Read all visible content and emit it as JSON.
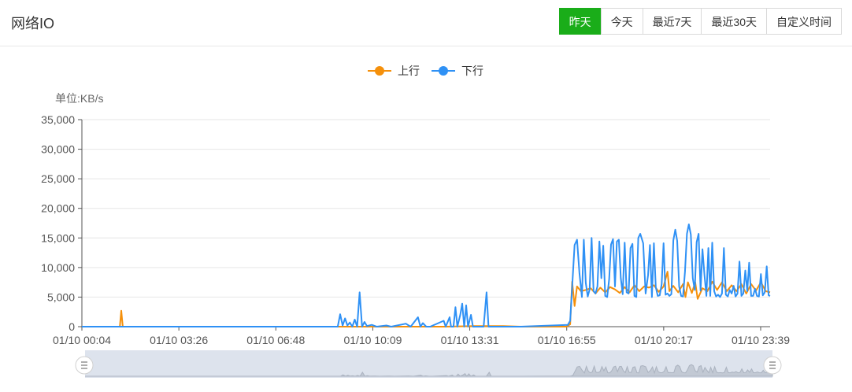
{
  "header": {
    "title": "网络IO",
    "buttons": [
      {
        "label": "昨天",
        "active": true
      },
      {
        "label": "今天",
        "active": false
      },
      {
        "label": "最近7天",
        "active": false
      },
      {
        "label": "最近30天",
        "active": false
      },
      {
        "label": "自定义时间",
        "active": false
      }
    ]
  },
  "colors": {
    "upload": "#f5900b",
    "download": "#2f91f5",
    "active_button": "#1aad19"
  },
  "chart_data": {
    "type": "line",
    "unit_label": "单位:KB/s",
    "legend": [
      "上行",
      "下行"
    ],
    "legend_position": "top-center",
    "grid": true,
    "ylim": [
      0,
      35000
    ],
    "y_ticks": [
      "35,000",
      "30,000",
      "25,000",
      "20,000",
      "15,000",
      "10,000",
      "5,000",
      "0"
    ],
    "x_ticks": [
      "01/10 00:04",
      "01/10 03:26",
      "01/10 06:48",
      "01/10 10:09",
      "01/10 13:31",
      "01/10 16:55",
      "01/10 20:17",
      "01/10 23:39"
    ],
    "x_range_minutes": [
      4,
      1419
    ],
    "series": [
      {
        "name": "上行",
        "points": [
          [
            4,
            0
          ],
          [
            70,
            0
          ],
          [
            82,
            0
          ],
          [
            85,
            2700
          ],
          [
            88,
            0
          ],
          [
            100,
            0
          ],
          [
            300,
            0
          ],
          [
            640,
            0
          ],
          [
            750,
            0
          ],
          [
            810,
            100
          ],
          [
            870,
            100
          ],
          [
            908,
            0
          ],
          [
            1000,
            0
          ],
          [
            1008,
            400
          ],
          [
            1012,
            7600
          ],
          [
            1017,
            3500
          ],
          [
            1022,
            6800
          ],
          [
            1030,
            6000
          ],
          [
            1040,
            6200
          ],
          [
            1050,
            6500
          ],
          [
            1060,
            5600
          ],
          [
            1070,
            6600
          ],
          [
            1080,
            5800
          ],
          [
            1090,
            6700
          ],
          [
            1100,
            6300
          ],
          [
            1110,
            5700
          ],
          [
            1120,
            6700
          ],
          [
            1130,
            5800
          ],
          [
            1140,
            7000
          ],
          [
            1150,
            6000
          ],
          [
            1160,
            6800
          ],
          [
            1170,
            6600
          ],
          [
            1180,
            7000
          ],
          [
            1190,
            5900
          ],
          [
            1200,
            6800
          ],
          [
            1208,
            9300
          ],
          [
            1212,
            6000
          ],
          [
            1220,
            6900
          ],
          [
            1230,
            5800
          ],
          [
            1240,
            7200
          ],
          [
            1245,
            5000
          ],
          [
            1250,
            7500
          ],
          [
            1258,
            5700
          ],
          [
            1265,
            7500
          ],
          [
            1270,
            4700
          ],
          [
            1280,
            6500
          ],
          [
            1290,
            6000
          ],
          [
            1300,
            7600
          ],
          [
            1310,
            6200
          ],
          [
            1320,
            7500
          ],
          [
            1330,
            6000
          ],
          [
            1340,
            7000
          ],
          [
            1350,
            6000
          ],
          [
            1360,
            7200
          ],
          [
            1370,
            5600
          ],
          [
            1380,
            7200
          ],
          [
            1390,
            6100
          ],
          [
            1400,
            7500
          ],
          [
            1410,
            6000
          ],
          [
            1419,
            5800
          ]
        ]
      },
      {
        "name": "下行",
        "points": [
          [
            4,
            0
          ],
          [
            100,
            0
          ],
          [
            300,
            0
          ],
          [
            530,
            0
          ],
          [
            535,
            2100
          ],
          [
            540,
            200
          ],
          [
            545,
            1400
          ],
          [
            550,
            200
          ],
          [
            555,
            700
          ],
          [
            560,
            0
          ],
          [
            565,
            1200
          ],
          [
            570,
            0
          ],
          [
            575,
            5800
          ],
          [
            580,
            0
          ],
          [
            585,
            800
          ],
          [
            590,
            100
          ],
          [
            600,
            300
          ],
          [
            610,
            0
          ],
          [
            630,
            200
          ],
          [
            640,
            0
          ],
          [
            670,
            500
          ],
          [
            680,
            0
          ],
          [
            695,
            1600
          ],
          [
            700,
            0
          ],
          [
            705,
            600
          ],
          [
            712,
            0
          ],
          [
            720,
            0
          ],
          [
            748,
            1000
          ],
          [
            752,
            0
          ],
          [
            760,
            1600
          ],
          [
            763,
            0
          ],
          [
            768,
            0
          ],
          [
            772,
            3300
          ],
          [
            776,
            0
          ],
          [
            782,
            2000
          ],
          [
            786,
            3900
          ],
          [
            790,
            0
          ],
          [
            794,
            3600
          ],
          [
            798,
            0
          ],
          [
            804,
            2000
          ],
          [
            808,
            0
          ],
          [
            830,
            0
          ],
          [
            836,
            5800
          ],
          [
            840,
            0
          ],
          [
            905,
            0
          ],
          [
            1003,
            300
          ],
          [
            1008,
            1000
          ],
          [
            1012,
            6700
          ],
          [
            1017,
            13800
          ],
          [
            1022,
            14700
          ],
          [
            1027,
            9000
          ],
          [
            1032,
            5000
          ],
          [
            1036,
            14700
          ],
          [
            1040,
            7400
          ],
          [
            1044,
            5100
          ],
          [
            1048,
            6300
          ],
          [
            1052,
            15000
          ],
          [
            1056,
            6000
          ],
          [
            1060,
            5600
          ],
          [
            1064,
            6800
          ],
          [
            1068,
            14400
          ],
          [
            1072,
            8200
          ],
          [
            1076,
            13700
          ],
          [
            1080,
            5200
          ],
          [
            1084,
            5000
          ],
          [
            1088,
            8000
          ],
          [
            1092,
            13900
          ],
          [
            1096,
            14800
          ],
          [
            1100,
            6800
          ],
          [
            1104,
            14400
          ],
          [
            1108,
            14700
          ],
          [
            1112,
            8200
          ],
          [
            1116,
            5500
          ],
          [
            1120,
            14200
          ],
          [
            1124,
            5800
          ],
          [
            1128,
            5600
          ],
          [
            1132,
            13300
          ],
          [
            1136,
            14000
          ],
          [
            1140,
            5200
          ],
          [
            1144,
            5000
          ],
          [
            1148,
            15000
          ],
          [
            1152,
            15700
          ],
          [
            1158,
            14100
          ],
          [
            1163,
            5600
          ],
          [
            1168,
            8700
          ],
          [
            1172,
            13800
          ],
          [
            1176,
            5000
          ],
          [
            1180,
            14100
          ],
          [
            1184,
            6700
          ],
          [
            1188,
            5200
          ],
          [
            1192,
            5300
          ],
          [
            1196,
            7200
          ],
          [
            1200,
            14100
          ],
          [
            1204,
            5400
          ],
          [
            1208,
            5600
          ],
          [
            1212,
            5200
          ],
          [
            1216,
            5500
          ],
          [
            1220,
            14600
          ],
          [
            1224,
            16400
          ],
          [
            1228,
            14500
          ],
          [
            1232,
            6800
          ],
          [
            1236,
            5200
          ],
          [
            1240,
            5100
          ],
          [
            1244,
            9300
          ],
          [
            1248,
            15700
          ],
          [
            1252,
            17300
          ],
          [
            1256,
            15600
          ],
          [
            1260,
            8200
          ],
          [
            1264,
            6200
          ],
          [
            1268,
            14300
          ],
          [
            1272,
            15700
          ],
          [
            1276,
            6100
          ],
          [
            1280,
            13100
          ],
          [
            1284,
            8800
          ],
          [
            1288,
            5200
          ],
          [
            1292,
            13300
          ],
          [
            1296,
            5200
          ],
          [
            1300,
            14200
          ],
          [
            1304,
            6000
          ],
          [
            1308,
            5100
          ],
          [
            1312,
            5400
          ],
          [
            1316,
            5000
          ],
          [
            1320,
            5600
          ],
          [
            1324,
            13300
          ],
          [
            1328,
            5400
          ],
          [
            1332,
            5100
          ],
          [
            1336,
            6200
          ],
          [
            1340,
            5600
          ],
          [
            1344,
            6900
          ],
          [
            1348,
            5100
          ],
          [
            1352,
            5600
          ],
          [
            1356,
            11000
          ],
          [
            1360,
            5200
          ],
          [
            1364,
            5600
          ],
          [
            1368,
            9500
          ],
          [
            1372,
            6000
          ],
          [
            1376,
            10800
          ],
          [
            1380,
            5200
          ],
          [
            1384,
            5200
          ],
          [
            1388,
            6400
          ],
          [
            1392,
            5200
          ],
          [
            1396,
            5100
          ],
          [
            1400,
            8900
          ],
          [
            1404,
            5300
          ],
          [
            1408,
            5800
          ],
          [
            1412,
            10200
          ],
          [
            1416,
            5300
          ],
          [
            1419,
            5200
          ]
        ]
      }
    ]
  }
}
